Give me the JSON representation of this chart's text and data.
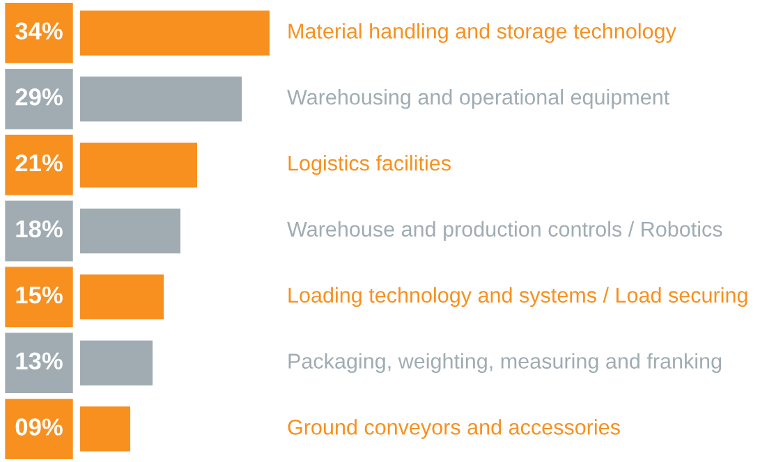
{
  "chart_data": {
    "type": "bar",
    "orientation": "horizontal",
    "categories": [
      "Material handling and storage technology",
      "Warehousing and operational equipment",
      "Logistics facilities",
      "Warehouse and production controls / Robotics",
      "Loading technology and systems / Load securing",
      "Packaging, weighting, measuring and franking",
      "Ground conveyors and accessories"
    ],
    "values": [
      34,
      29,
      21,
      18,
      15,
      13,
      9
    ],
    "value_labels": [
      "34%",
      "29%",
      "21%",
      "18%",
      "15%",
      "13%",
      "09%"
    ],
    "colors": [
      "#f7901e",
      "#a0acb2",
      "#f7901e",
      "#a0acb2",
      "#f7901e",
      "#a0acb2",
      "#f7901e"
    ]
  }
}
